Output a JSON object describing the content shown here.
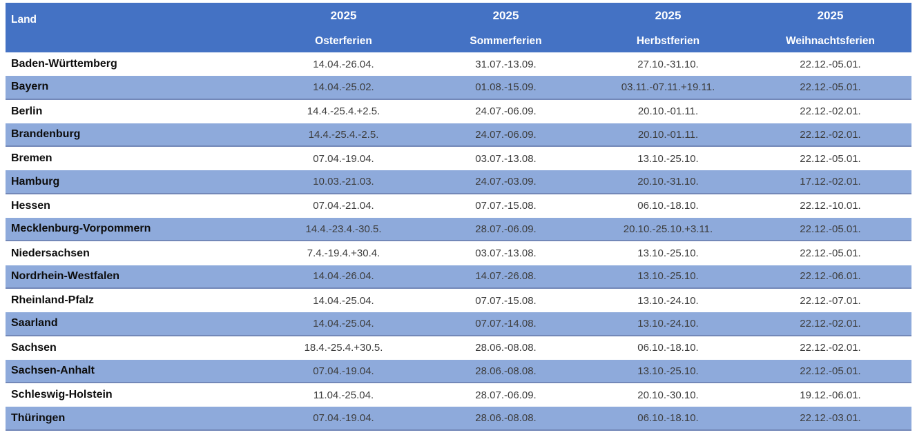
{
  "table": {
    "header": {
      "land_label": "Land",
      "year": "2025",
      "columns": [
        "Osterferien",
        "Sommerferien",
        "Herbstferien",
        "Weihnachtsferien"
      ]
    },
    "rows": [
      {
        "land": "Baden-Württemberg",
        "osterferien": "14.04.-26.04.",
        "sommerferien": "31.07.-13.09.",
        "herbstferien": "27.10.-31.10.",
        "weihnachtsferien": "22.12.-05.01."
      },
      {
        "land": "Bayern",
        "osterferien": "14.04.-25.02.",
        "sommerferien": "01.08.-15.09.",
        "herbstferien": "03.11.-07.11.+19.11.",
        "weihnachtsferien": "22.12.-05.01."
      },
      {
        "land": "Berlin",
        "osterferien": "14.4.-25.4.+2.5.",
        "sommerferien": "24.07.-06.09.",
        "herbstferien": "20.10.-01.11.",
        "weihnachtsferien": "22.12.-02.01."
      },
      {
        "land": "Brandenburg",
        "osterferien": "14.4.-25.4.-2.5.",
        "sommerferien": "24.07.-06.09.",
        "herbstferien": "20.10.-01.11.",
        "weihnachtsferien": "22.12.-02.01."
      },
      {
        "land": "Bremen",
        "osterferien": "07.04.-19.04.",
        "sommerferien": "03.07.-13.08.",
        "herbstferien": "13.10.-25.10.",
        "weihnachtsferien": "22.12.-05.01."
      },
      {
        "land": "Hamburg",
        "osterferien": "10.03.-21.03.",
        "sommerferien": "24.07.-03.09.",
        "herbstferien": "20.10.-31.10.",
        "weihnachtsferien": "17.12.-02.01."
      },
      {
        "land": "Hessen",
        "osterferien": "07.04.-21.04.",
        "sommerferien": "07.07.-15.08.",
        "herbstferien": "06.10.-18.10.",
        "weihnachtsferien": "22.12.-10.01."
      },
      {
        "land": "Mecklenburg-Vorpommern",
        "osterferien": "14.4.-23.4.-30.5.",
        "sommerferien": "28.07.-06.09.",
        "herbstferien": "20.10.-25.10.+3.11.",
        "weihnachtsferien": "22.12.-05.01."
      },
      {
        "land": "Niedersachsen",
        "osterferien": "7.4.-19.4.+30.4.",
        "sommerferien": "03.07.-13.08.",
        "herbstferien": "13.10.-25.10.",
        "weihnachtsferien": "22.12.-05.01."
      },
      {
        "land": "Nordrhein-Westfalen",
        "osterferien": "14.04.-26.04.",
        "sommerferien": "14.07.-26.08.",
        "herbstferien": "13.10.-25.10.",
        "weihnachtsferien": "22.12.-06.01."
      },
      {
        "land": "Rheinland-Pfalz",
        "osterferien": "14.04.-25.04.",
        "sommerferien": "07.07.-15.08.",
        "herbstferien": "13.10.-24.10.",
        "weihnachtsferien": "22.12.-07.01."
      },
      {
        "land": "Saarland",
        "osterferien": "14.04.-25.04.",
        "sommerferien": "07.07.-14.08.",
        "herbstferien": "13.10.-24.10.",
        "weihnachtsferien": "22.12.-02.01."
      },
      {
        "land": "Sachsen",
        "osterferien": "18.4.-25.4.+30.5.",
        "sommerferien": "28.06.-08.08.",
        "herbstferien": "06.10.-18.10.",
        "weihnachtsferien": "22.12.-02.01."
      },
      {
        "land": "Sachsen-Anhalt",
        "osterferien": "07.04.-19.04.",
        "sommerferien": "28.06.-08.08.",
        "herbstferien": "13.10.-25.10.",
        "weihnachtsferien": "22.12.-05.01."
      },
      {
        "land": "Schleswig-Holstein",
        "osterferien": "11.04.-25.04.",
        "sommerferien": "28.07.-06.09.",
        "herbstferien": "20.10.-30.10.",
        "weihnachtsferien": "19.12.-06.01."
      },
      {
        "land": "Thüringen",
        "osterferien": "07.04.-19.04.",
        "sommerferien": "28.06.-08.08.",
        "herbstferien": "06.10.-18.10.",
        "weihnachtsferien": "22.12.-03.01."
      }
    ],
    "colors": {
      "header_bg": "#4472C4",
      "header_text": "#FFFFFF",
      "alt_row_bg": "#8EAADB",
      "alt_row_border": "#7388B8"
    }
  }
}
